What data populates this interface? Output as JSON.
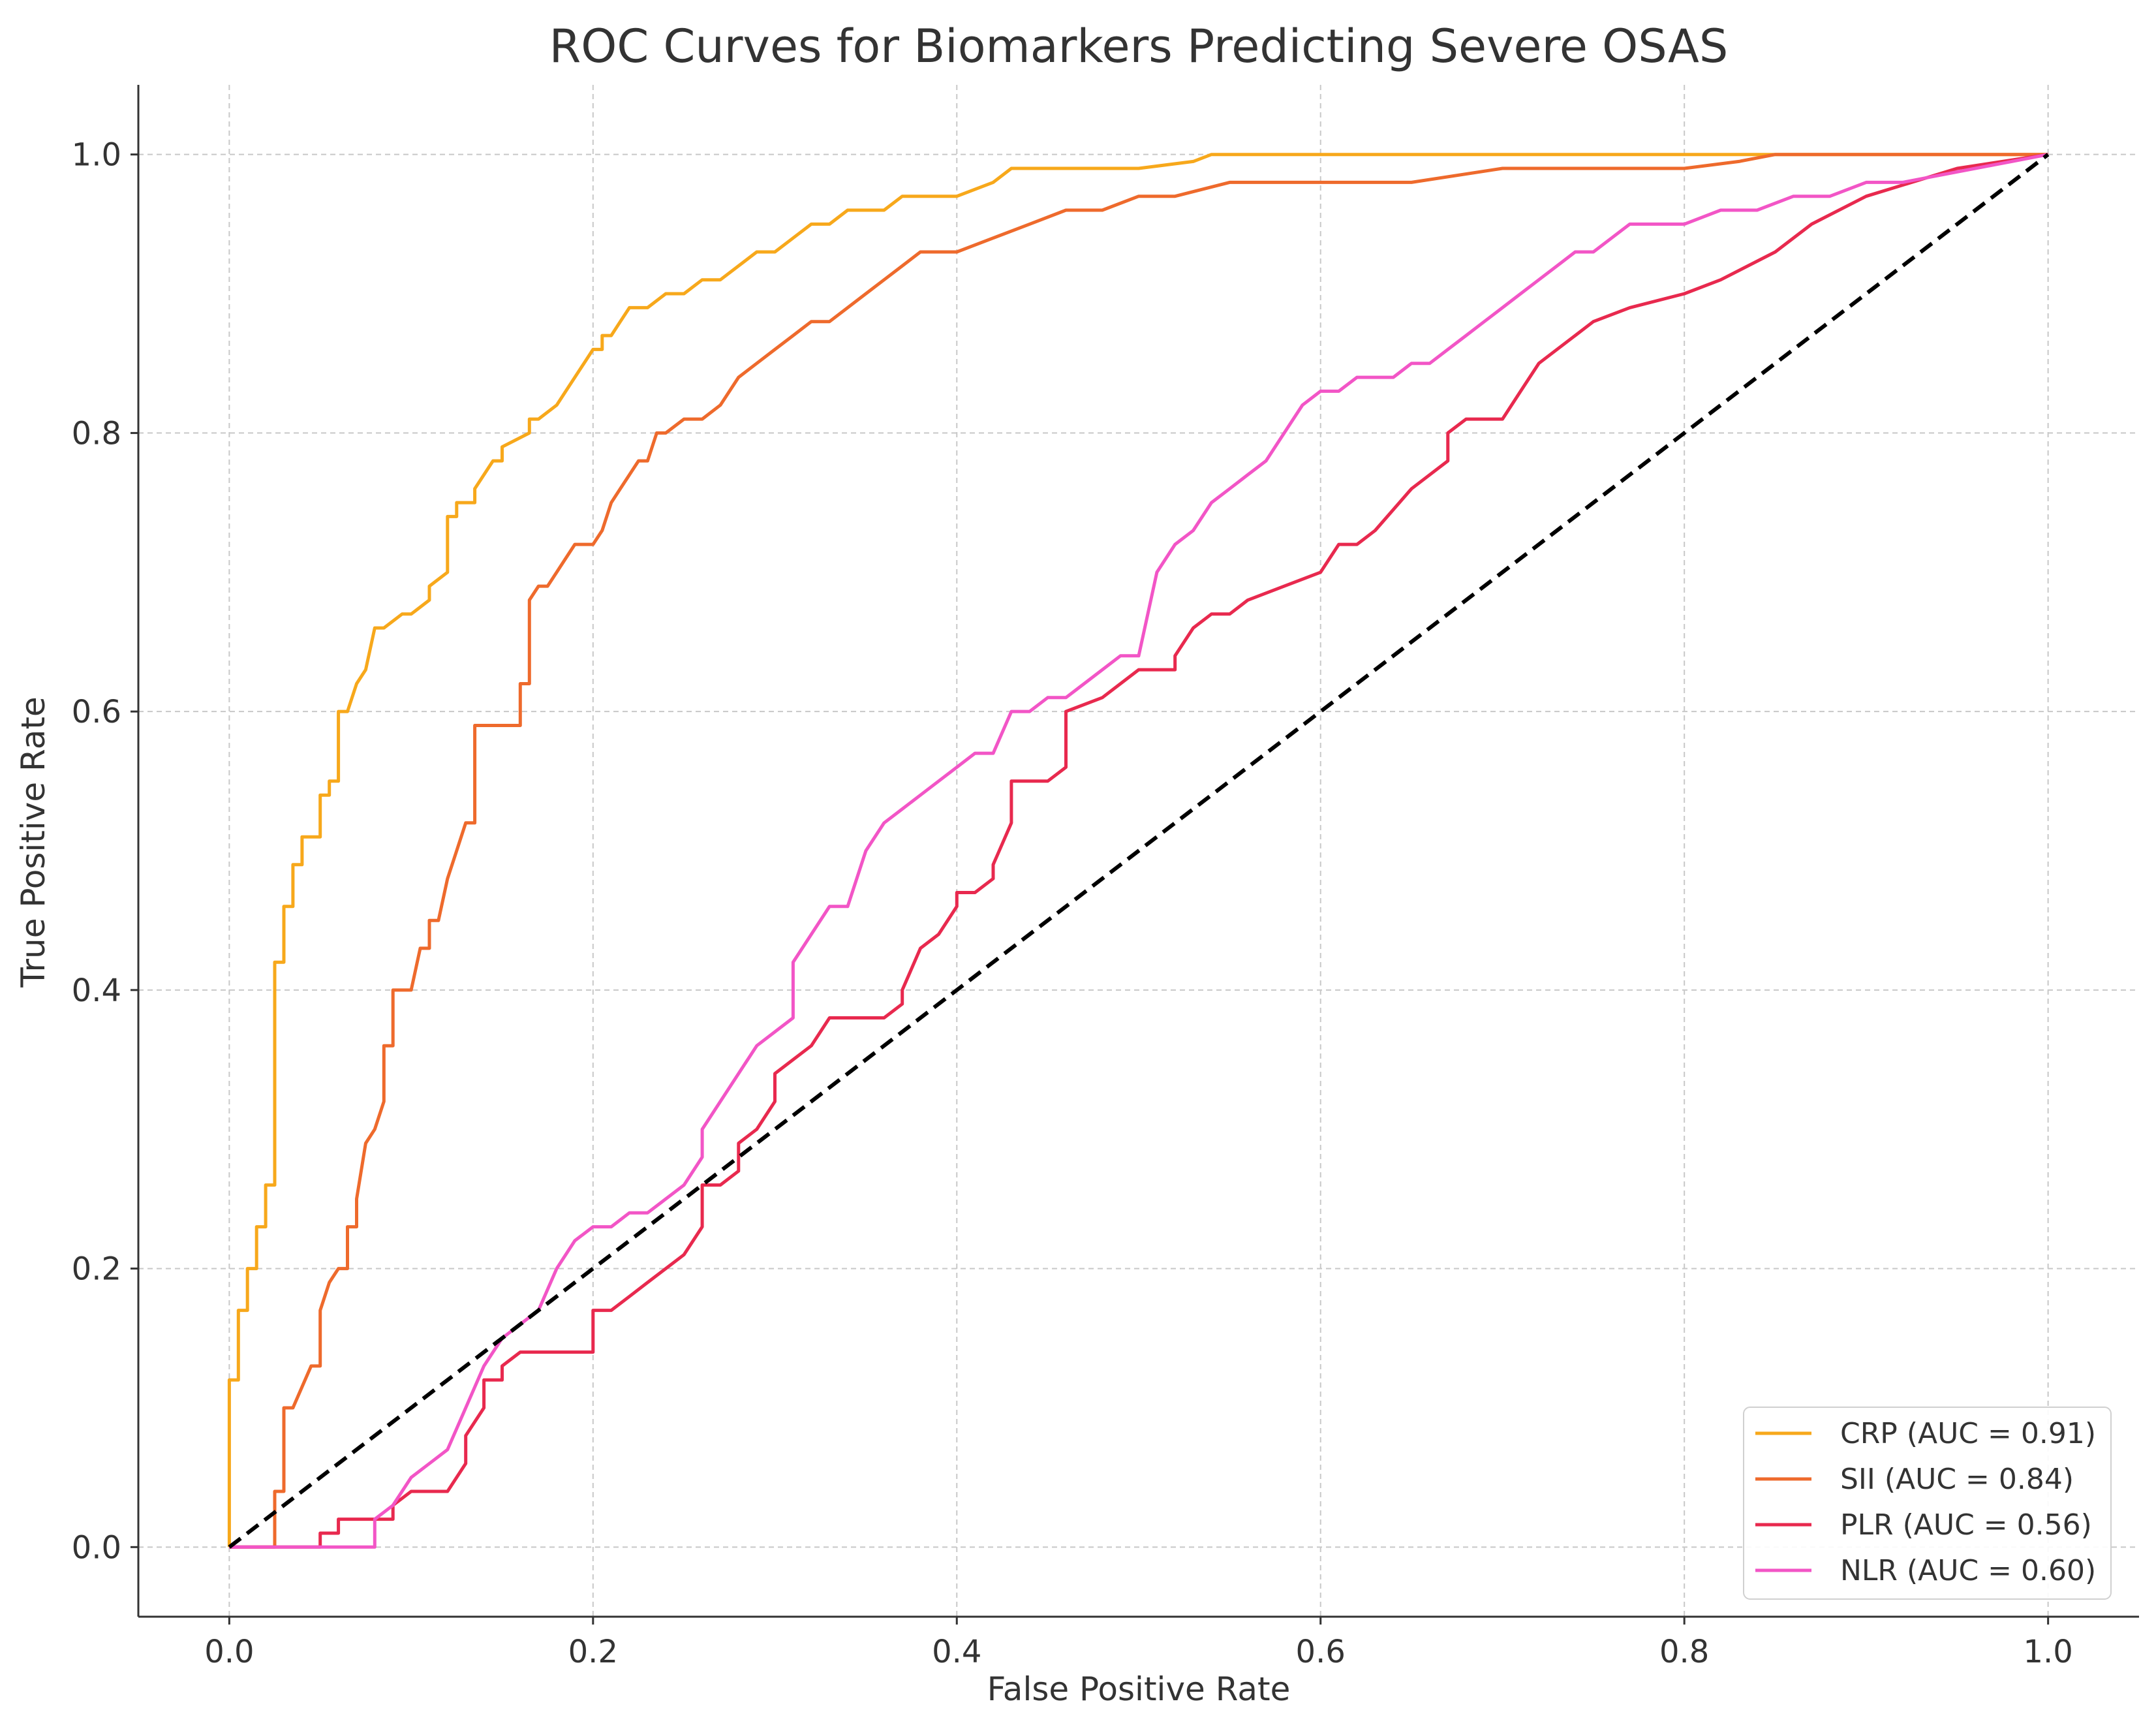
{
  "chart_data": {
    "type": "line",
    "title": "ROC Curves for Biomarkers Predicting Severe OSAS",
    "xlabel": "False Positive Rate",
    "ylabel": "True Positive Rate",
    "xlim": [
      -0.05,
      1.05
    ],
    "ylim": [
      -0.05,
      1.05
    ],
    "xticks": [
      "0.0",
      "0.2",
      "0.4",
      "0.6",
      "0.8",
      "1.0"
    ],
    "yticks": [
      "0.0",
      "0.2",
      "0.4",
      "0.6",
      "0.8",
      "1.0"
    ],
    "xtick_values": [
      0,
      0.2,
      0.4,
      0.6,
      0.8,
      1.0
    ],
    "ytick_values": [
      0,
      0.2,
      0.4,
      0.6,
      0.8,
      1.0
    ],
    "grid": true,
    "legend_position": "bottom-right",
    "series": [
      {
        "name": "CRP (AUC = 0.91)",
        "color": "#f7a81b",
        "x": [
          0,
          0,
          0.005,
          0.005,
          0.01,
          0.01,
          0.015,
          0.015,
          0.02,
          0.02,
          0.025,
          0.025,
          0.03,
          0.03,
          0.035,
          0.035,
          0.04,
          0.04,
          0.05,
          0.05,
          0.055,
          0.055,
          0.06,
          0.06,
          0.065,
          0.07,
          0.075,
          0.08,
          0.085,
          0.085,
          0.095,
          0.1,
          0.11,
          0.11,
          0.12,
          0.12,
          0.125,
          0.125,
          0.135,
          0.135,
          0.14,
          0.145,
          0.15,
          0.15,
          0.165,
          0.165,
          0.17,
          0.18,
          0.185,
          0.19,
          0.195,
          0.2,
          0.205,
          0.205,
          0.21,
          0.215,
          0.22,
          0.23,
          0.24,
          0.25,
          0.26,
          0.27,
          0.28,
          0.29,
          0.3,
          0.31,
          0.32,
          0.33,
          0.34,
          0.36,
          0.37,
          0.38,
          0.39,
          0.4,
          0.42,
          0.43,
          0.44,
          0.46,
          0.5,
          0.53,
          0.54,
          0.6,
          0.7,
          0.8,
          1.0
        ],
        "y": [
          0,
          0.12,
          0.12,
          0.17,
          0.17,
          0.2,
          0.2,
          0.23,
          0.23,
          0.26,
          0.26,
          0.42,
          0.42,
          0.46,
          0.46,
          0.49,
          0.49,
          0.51,
          0.51,
          0.54,
          0.54,
          0.55,
          0.55,
          0.6,
          0.6,
          0.62,
          0.63,
          0.66,
          0.66,
          0.66,
          0.67,
          0.67,
          0.68,
          0.69,
          0.7,
          0.74,
          0.74,
          0.75,
          0.75,
          0.76,
          0.77,
          0.78,
          0.78,
          0.79,
          0.8,
          0.81,
          0.81,
          0.82,
          0.83,
          0.84,
          0.85,
          0.86,
          0.86,
          0.87,
          0.87,
          0.88,
          0.89,
          0.89,
          0.9,
          0.9,
          0.91,
          0.91,
          0.92,
          0.93,
          0.93,
          0.94,
          0.95,
          0.95,
          0.96,
          0.96,
          0.97,
          0.97,
          0.97,
          0.97,
          0.98,
          0.99,
          0.99,
          0.99,
          0.99,
          0.995,
          1.0,
          1.0,
          1.0,
          1.0,
          1.0
        ]
      },
      {
        "name": "SII (AUC = 0.84)",
        "color": "#ee6a2c",
        "x": [
          0,
          0.025,
          0.025,
          0.03,
          0.03,
          0.035,
          0.035,
          0.045,
          0.05,
          0.05,
          0.055,
          0.06,
          0.065,
          0.065,
          0.07,
          0.07,
          0.075,
          0.08,
          0.085,
          0.085,
          0.09,
          0.09,
          0.095,
          0.1,
          0.105,
          0.11,
          0.11,
          0.115,
          0.12,
          0.125,
          0.13,
          0.13,
          0.135,
          0.135,
          0.14,
          0.14,
          0.15,
          0.16,
          0.16,
          0.165,
          0.165,
          0.17,
          0.175,
          0.18,
          0.185,
          0.19,
          0.195,
          0.2,
          0.205,
          0.21,
          0.215,
          0.22,
          0.225,
          0.23,
          0.235,
          0.24,
          0.25,
          0.26,
          0.27,
          0.28,
          0.29,
          0.3,
          0.31,
          0.32,
          0.33,
          0.35,
          0.36,
          0.37,
          0.38,
          0.4,
          0.42,
          0.44,
          0.46,
          0.48,
          0.5,
          0.52,
          0.55,
          0.6,
          0.65,
          0.7,
          0.75,
          0.8,
          0.83,
          0.85,
          0.9,
          1.0
        ],
        "y": [
          0,
          0,
          0.04,
          0.04,
          0.1,
          0.1,
          0.1,
          0.13,
          0.13,
          0.17,
          0.19,
          0.2,
          0.2,
          0.23,
          0.23,
          0.25,
          0.29,
          0.3,
          0.32,
          0.36,
          0.36,
          0.4,
          0.4,
          0.4,
          0.43,
          0.43,
          0.45,
          0.45,
          0.48,
          0.5,
          0.52,
          0.52,
          0.52,
          0.59,
          0.59,
          0.59,
          0.59,
          0.59,
          0.62,
          0.62,
          0.68,
          0.69,
          0.69,
          0.7,
          0.71,
          0.72,
          0.72,
          0.72,
          0.73,
          0.75,
          0.76,
          0.77,
          0.78,
          0.78,
          0.8,
          0.8,
          0.81,
          0.81,
          0.82,
          0.84,
          0.85,
          0.86,
          0.87,
          0.88,
          0.88,
          0.9,
          0.91,
          0.92,
          0.93,
          0.93,
          0.94,
          0.95,
          0.96,
          0.96,
          0.97,
          0.97,
          0.98,
          0.98,
          0.98,
          0.99,
          0.99,
          0.99,
          0.995,
          1.0,
          1.0,
          1.0
        ]
      },
      {
        "name": "PLR (AUC = 0.56)",
        "color": "#e8294e",
        "x": [
          0,
          0.05,
          0.05,
          0.06,
          0.06,
          0.07,
          0.07,
          0.09,
          0.09,
          0.1,
          0.12,
          0.13,
          0.13,
          0.14,
          0.14,
          0.15,
          0.15,
          0.16,
          0.16,
          0.17,
          0.2,
          0.2,
          0.21,
          0.22,
          0.23,
          0.24,
          0.25,
          0.26,
          0.26,
          0.27,
          0.28,
          0.28,
          0.29,
          0.3,
          0.3,
          0.31,
          0.32,
          0.33,
          0.34,
          0.35,
          0.36,
          0.37,
          0.37,
          0.38,
          0.39,
          0.4,
          0.4,
          0.41,
          0.42,
          0.42,
          0.43,
          0.43,
          0.45,
          0.46,
          0.46,
          0.48,
          0.49,
          0.5,
          0.52,
          0.52,
          0.53,
          0.54,
          0.55,
          0.56,
          0.58,
          0.6,
          0.61,
          0.62,
          0.63,
          0.65,
          0.67,
          0.67,
          0.68,
          0.7,
          0.71,
          0.72,
          0.74,
          0.75,
          0.77,
          0.8,
          0.82,
          0.85,
          0.87,
          0.9,
          0.95,
          1.0
        ],
        "y": [
          0,
          0,
          0.01,
          0.01,
          0.02,
          0.02,
          0.02,
          0.02,
          0.03,
          0.04,
          0.04,
          0.06,
          0.08,
          0.1,
          0.12,
          0.12,
          0.13,
          0.14,
          0.14,
          0.14,
          0.14,
          0.17,
          0.17,
          0.18,
          0.19,
          0.2,
          0.21,
          0.23,
          0.26,
          0.26,
          0.27,
          0.29,
          0.3,
          0.32,
          0.34,
          0.35,
          0.36,
          0.38,
          0.38,
          0.38,
          0.38,
          0.39,
          0.4,
          0.43,
          0.44,
          0.46,
          0.47,
          0.47,
          0.48,
          0.49,
          0.52,
          0.55,
          0.55,
          0.56,
          0.6,
          0.61,
          0.62,
          0.63,
          0.63,
          0.64,
          0.66,
          0.67,
          0.67,
          0.68,
          0.69,
          0.7,
          0.72,
          0.72,
          0.73,
          0.76,
          0.78,
          0.8,
          0.81,
          0.81,
          0.83,
          0.85,
          0.87,
          0.88,
          0.89,
          0.9,
          0.91,
          0.93,
          0.95,
          0.97,
          0.99,
          1.0
        ]
      },
      {
        "name": "NLR (AUC = 0.60)",
        "color": "#f255c6",
        "x": [
          0,
          0.08,
          0.08,
          0.09,
          0.1,
          0.11,
          0.12,
          0.13,
          0.14,
          0.15,
          0.16,
          0.17,
          0.18,
          0.19,
          0.2,
          0.21,
          0.22,
          0.23,
          0.24,
          0.25,
          0.26,
          0.26,
          0.27,
          0.28,
          0.29,
          0.3,
          0.31,
          0.31,
          0.32,
          0.33,
          0.34,
          0.35,
          0.36,
          0.37,
          0.38,
          0.39,
          0.4,
          0.41,
          0.42,
          0.43,
          0.44,
          0.45,
          0.46,
          0.47,
          0.48,
          0.49,
          0.5,
          0.51,
          0.52,
          0.53,
          0.54,
          0.55,
          0.56,
          0.57,
          0.58,
          0.59,
          0.6,
          0.61,
          0.62,
          0.63,
          0.64,
          0.65,
          0.66,
          0.67,
          0.68,
          0.69,
          0.7,
          0.71,
          0.72,
          0.73,
          0.74,
          0.75,
          0.76,
          0.77,
          0.78,
          0.8,
          0.82,
          0.84,
          0.86,
          0.88,
          0.9,
          0.92,
          0.94,
          0.96,
          0.98,
          1.0
        ],
        "y": [
          0,
          0,
          0.02,
          0.03,
          0.05,
          0.06,
          0.07,
          0.1,
          0.13,
          0.15,
          0.16,
          0.17,
          0.2,
          0.22,
          0.23,
          0.23,
          0.24,
          0.24,
          0.25,
          0.26,
          0.28,
          0.3,
          0.32,
          0.34,
          0.36,
          0.37,
          0.38,
          0.42,
          0.44,
          0.46,
          0.46,
          0.5,
          0.52,
          0.53,
          0.54,
          0.55,
          0.56,
          0.57,
          0.57,
          0.6,
          0.6,
          0.61,
          0.61,
          0.62,
          0.63,
          0.64,
          0.64,
          0.7,
          0.72,
          0.73,
          0.75,
          0.76,
          0.77,
          0.78,
          0.8,
          0.82,
          0.83,
          0.83,
          0.84,
          0.84,
          0.84,
          0.85,
          0.85,
          0.86,
          0.87,
          0.88,
          0.89,
          0.9,
          0.91,
          0.92,
          0.93,
          0.93,
          0.94,
          0.95,
          0.95,
          0.95,
          0.96,
          0.96,
          0.97,
          0.97,
          0.98,
          0.98,
          0.985,
          0.99,
          0.995,
          1.0
        ]
      }
    ],
    "reference_line": {
      "name": "chance",
      "color": "#000000",
      "x": [
        0,
        1
      ],
      "y": [
        0,
        1
      ]
    }
  }
}
